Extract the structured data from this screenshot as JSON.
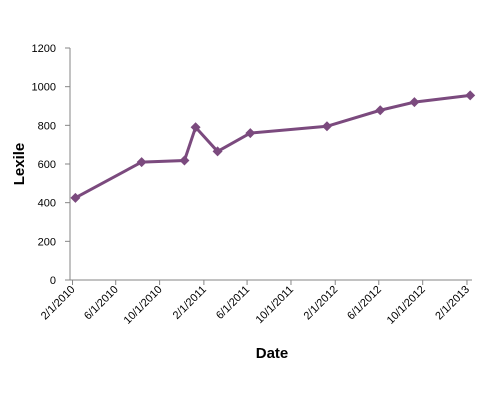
{
  "chart_data": {
    "type": "line",
    "x_label": "Date",
    "y_label": "Lexile",
    "x": [
      "2/9/2010",
      "8/12/2010",
      "12/9/2010",
      "1/9/2011",
      "3/11/2011",
      "6/10/2011",
      "1/9/2012",
      "6/5/2012",
      "9/8/2012",
      "2/10/2013"
    ],
    "series": [
      {
        "name": "Lexile",
        "color": "#7b4a7e",
        "values": [
          425,
          610,
          618,
          790,
          665,
          760,
          795,
          878,
          920,
          955
        ]
      }
    ],
    "xlim": [
      "1/25/2010",
      "2/15/2013"
    ],
    "xticks": [
      "2/1/2010",
      "6/1/2010",
      "10/1/2010",
      "2/1/2011",
      "6/1/2011",
      "10/1/2011",
      "2/1/2012",
      "6/1/2012",
      "10/1/2012",
      "2/1/2013"
    ],
    "ylim": [
      0,
      1200
    ],
    "yticks": [
      0,
      200,
      400,
      600,
      800,
      1000,
      1200
    ],
    "grid": false
  }
}
